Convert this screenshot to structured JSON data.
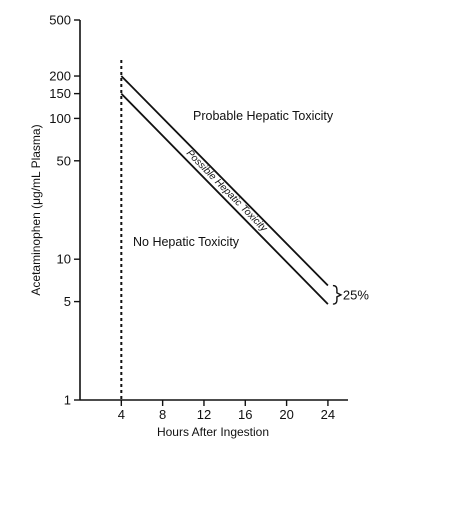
{
  "chart_data": {
    "type": "line",
    "x_label": "Hours After Ingestion",
    "y_label": "Acetaminophen (μg/mL Plasma)",
    "y_scale": "log",
    "x_range": [
      0,
      26
    ],
    "y_range": [
      1,
      500
    ],
    "x_ticks": [
      4,
      8,
      12,
      16,
      20,
      24
    ],
    "y_ticks": [
      1,
      5,
      10,
      50,
      100,
      150,
      200,
      500
    ],
    "series": [
      {
        "name": "",
        "x": [
          4,
          24
        ],
        "y": [
          200,
          6.5
        ]
      },
      {
        "name": "",
        "x": [
          4,
          24
        ],
        "y": [
          150,
          4.8
        ]
      }
    ],
    "reference_line": {
      "x": 4,
      "style": "dashed"
    },
    "regions": {
      "upper": "Probable Hepatic Toxicity",
      "band": "Possible Hepatic Toxicity",
      "lower": "No Hepatic Toxicity"
    },
    "band_bracket_label": "25%"
  }
}
